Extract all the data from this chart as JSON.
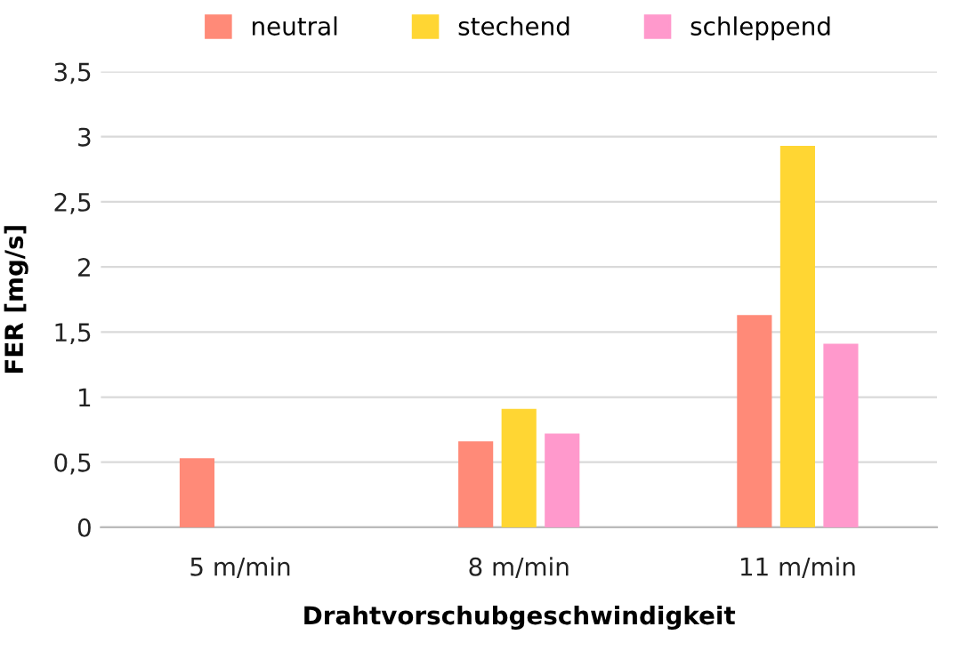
{
  "chart_data": {
    "type": "bar",
    "xlabel": "Drahtvorschubgeschwindigkeit",
    "ylabel": "FER [mg/s]",
    "categories": [
      "5 m/min",
      "8 m/min",
      "11 m/min"
    ],
    "series": [
      {
        "name": "neutral",
        "color": "#ff8a78",
        "values": [
          0.53,
          0.66,
          1.63
        ]
      },
      {
        "name": "stechend",
        "color": "#ffd633",
        "values": [
          null,
          0.91,
          2.93
        ]
      },
      {
        "name": "schleppend",
        "color": "#ff99cc",
        "values": [
          null,
          0.72,
          1.41
        ]
      }
    ],
    "ylim": [
      0,
      3.5
    ],
    "yticks": [
      0,
      {
        "value": 0.5,
        "label": "0,5"
      },
      1,
      {
        "value": 1.5,
        "label": "1,5"
      },
      2,
      {
        "value": 2.5,
        "label": "2,5"
      },
      3,
      {
        "value": 3.5,
        "label": "3,5"
      }
    ],
    "grid": "y",
    "legend": "top"
  }
}
